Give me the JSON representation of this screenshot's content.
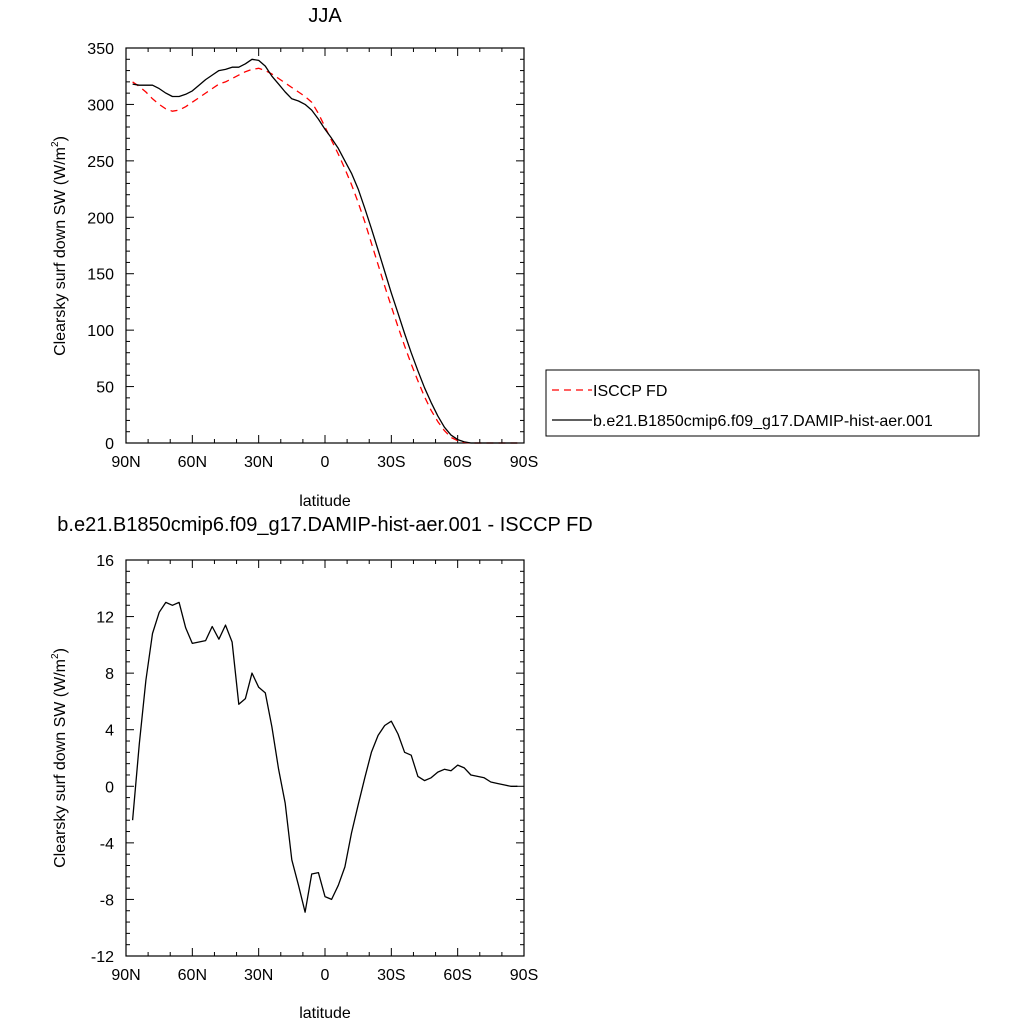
{
  "chart_data": [
    {
      "type": "line",
      "title": "JJA",
      "xlabel": "latitude",
      "ylabel": "Clearsky surf down SW (W/m",
      "ylabel_superscript": "2",
      "ylabel_suffix": ")",
      "xlim": [
        90,
        -90
      ],
      "ylim": [
        0,
        350
      ],
      "x_ticks": [
        90,
        60,
        30,
        0,
        -30,
        -60,
        -90
      ],
      "x_tick_labels": [
        "90N",
        "60N",
        "30N",
        "0",
        "30S",
        "60S",
        "90S"
      ],
      "y_ticks": [
        0,
        50,
        100,
        150,
        200,
        250,
        300,
        350
      ],
      "y_tick_labels": [
        "0",
        "50",
        "100",
        "150",
        "200",
        "250",
        "300",
        "350"
      ],
      "legend_position": "right",
      "series": [
        {
          "name": "ISCCP FD",
          "color": "#ff0000",
          "dash": "dashed",
          "x": [
            87,
            84,
            81,
            78,
            75,
            72,
            69,
            66,
            63,
            60,
            57,
            54,
            51,
            48,
            45,
            42,
            39,
            36,
            33,
            30,
            27,
            24,
            21,
            18,
            15,
            12,
            9,
            6,
            3,
            0,
            -3,
            -6,
            -9,
            -12,
            -15,
            -18,
            -21,
            -24,
            -27,
            -30,
            -33,
            -36,
            -39,
            -42,
            -45,
            -48,
            -51,
            -54,
            -57,
            -60,
            -63,
            -66,
            -69,
            -72,
            -75,
            -78,
            -81,
            -84,
            -87
          ],
          "y": [
            320,
            316,
            311,
            305,
            300,
            296,
            294,
            295,
            298,
            302,
            306,
            310,
            314,
            318,
            320,
            323,
            326,
            329,
            331,
            332,
            330,
            327,
            323,
            319,
            315,
            311,
            307,
            302,
            292,
            280,
            268,
            256,
            243,
            229,
            213,
            196,
            177,
            158,
            139,
            121,
            103,
            86,
            70,
            55,
            41,
            29,
            19,
            11,
            5,
            2,
            0.5,
            0,
            0,
            0,
            0,
            0,
            0,
            0,
            0
          ]
        },
        {
          "name": "b.e21.B1850cmip6.f09_g17.DAMIP-hist-aer.001",
          "color": "#000000",
          "dash": "solid",
          "x": [
            87,
            84,
            81,
            78,
            75,
            72,
            69,
            66,
            63,
            60,
            57,
            54,
            51,
            48,
            45,
            42,
            39,
            36,
            33,
            30,
            27,
            24,
            21,
            18,
            15,
            12,
            9,
            6,
            3,
            0,
            -3,
            -6,
            -9,
            -12,
            -15,
            -18,
            -21,
            -24,
            -27,
            -30,
            -33,
            -36,
            -39,
            -42,
            -45,
            -48,
            -51,
            -54,
            -57,
            -60,
            -63,
            -66,
            -69,
            -72,
            -75,
            -78,
            -81,
            -84,
            -87
          ],
          "y": [
            318,
            317,
            317,
            317,
            314,
            310,
            307,
            307,
            309,
            312,
            317,
            322,
            326,
            330,
            331,
            333,
            333,
            336,
            340,
            339,
            334,
            325,
            318,
            311,
            305,
            303,
            300,
            295,
            287,
            278,
            270,
            261,
            250,
            239,
            225,
            208,
            190,
            171,
            152,
            133,
            115,
            97,
            80,
            64,
            49,
            36,
            24,
            14,
            7,
            3,
            1,
            0,
            0,
            0,
            0,
            0,
            0,
            0,
            0
          ]
        }
      ]
    },
    {
      "type": "line",
      "title": "b.e21.B1850cmip6.f09_g17.DAMIP-hist-aer.001 - ISCCP FD",
      "xlabel": "latitude",
      "ylabel": "Clearsky surf down SW (W/m",
      "ylabel_superscript": "2",
      "ylabel_suffix": ")",
      "xlim": [
        90,
        -90
      ],
      "ylim": [
        -12,
        16
      ],
      "x_ticks": [
        90,
        60,
        30,
        0,
        -30,
        -60,
        -90
      ],
      "x_tick_labels": [
        "90N",
        "60N",
        "30N",
        "0",
        "30S",
        "60S",
        "90S"
      ],
      "y_ticks": [
        -12,
        -8,
        -4,
        0,
        4,
        8,
        12,
        16
      ],
      "y_tick_labels": [
        "-12",
        "-8",
        "-4",
        "0",
        "4",
        "8",
        "12",
        "16"
      ],
      "series": [
        {
          "color": "#000000",
          "dash": "solid",
          "x": [
            87,
            84,
            81,
            78,
            75,
            72,
            69,
            66,
            63,
            60,
            57,
            54,
            51,
            48,
            45,
            42,
            39,
            36,
            33,
            30,
            27,
            24,
            21,
            18,
            15,
            12,
            9,
            6,
            3,
            0,
            -3,
            -6,
            -9,
            -12,
            -15,
            -18,
            -21,
            -24,
            -27,
            -30,
            -33,
            -36,
            -39,
            -42,
            -45,
            -48,
            -51,
            -54,
            -57,
            -60,
            -63,
            -66,
            -69,
            -72,
            -75,
            -78,
            -81,
            -84,
            -87
          ],
          "y": [
            -2.4,
            3.0,
            7.5,
            10.8,
            12.3,
            13.0,
            12.8,
            13.0,
            11.2,
            10.1,
            10.2,
            10.3,
            11.3,
            10.4,
            11.4,
            10.2,
            5.8,
            6.2,
            8.0,
            7.0,
            6.6,
            4.2,
            1.2,
            -1.2,
            -5.2,
            -7.0,
            -8.9,
            -6.2,
            -6.1,
            -7.8,
            -8.0,
            -7.0,
            -5.7,
            -3.3,
            -1.3,
            0.6,
            2.4,
            3.6,
            4.3,
            4.6,
            3.7,
            2.4,
            2.2,
            0.7,
            0.4,
            0.6,
            1.0,
            1.2,
            1.1,
            1.5,
            1.3,
            0.8,
            0.7,
            0.6,
            0.3,
            0.2,
            0.1,
            0.0,
            0.0
          ]
        }
      ]
    }
  ]
}
